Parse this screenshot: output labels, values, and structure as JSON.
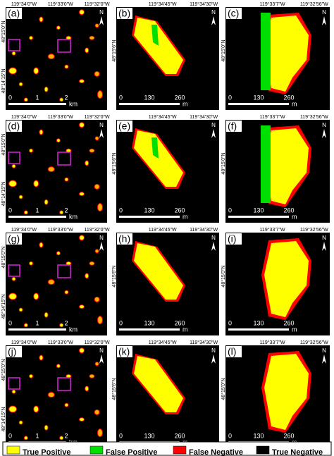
{
  "north": "N",
  "columns": [
    {
      "top_labels": [
        "119°34'0\"W",
        "119°33'0\"W",
        "119°32'0\"W"
      ],
      "left_labels": [
        "48°15'0\"N",
        "48°14'15\"N"
      ],
      "scale_ticks": [
        "0",
        "1",
        "2"
      ],
      "scale_unit": "km"
    },
    {
      "top_labels": [
        "119°34'45\"W",
        "119°34'30\"W"
      ],
      "left_labels": [
        "48°15'6\"N"
      ],
      "scale_ticks": [
        "0",
        "130",
        "260"
      ],
      "scale_unit": "m"
    },
    {
      "top_labels": [
        "119°33'7\"W",
        "119°32'56\"W"
      ],
      "left_labels": [
        "48°15'0\"N"
      ],
      "scale_ticks": [
        "0",
        "130",
        "260"
      ],
      "scale_unit": "m"
    }
  ],
  "panels": [
    [
      "(a)",
      "(b)",
      "(c)"
    ],
    [
      "(d)",
      "(e)",
      "(f)"
    ],
    [
      "(g)",
      "(h)",
      "(i)"
    ],
    [
      "(j)",
      "(k)",
      "(l)"
    ]
  ],
  "legend": [
    {
      "label": "True Positive",
      "color": "#ffff00"
    },
    {
      "label": "False Positive",
      "color": "#00e000"
    },
    {
      "label": "False Negative",
      "color": "#ff0000"
    },
    {
      "label": "True Negative",
      "color": "#000000"
    }
  ]
}
